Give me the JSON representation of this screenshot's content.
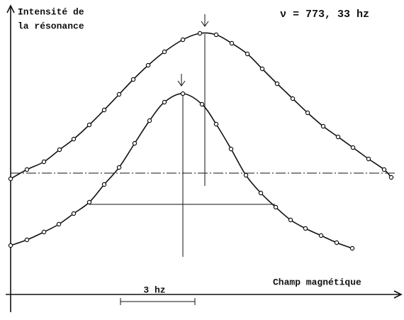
{
  "chart_data": {
    "type": "line",
    "ylabel": [
      "Intensité de",
      "la résonance"
    ],
    "xlabel": "Champ magnétique",
    "annotation": "ν = 773, 33 hz",
    "scale_label": "3 hz",
    "xlim": [
      0,
      550
    ],
    "ylim": [
      0,
      405
    ],
    "series": [
      {
        "color": "#111111",
        "x": [
          0,
          23,
          47,
          69,
          89,
          111,
          132,
          153,
          173,
          194,
          217,
          243,
          267,
          290,
          312,
          334,
          355,
          376,
          398,
          419,
          441,
          462,
          483,
          505,
          527,
          537
        ],
        "values": [
          163,
          176,
          187,
          204,
          219,
          239,
          260,
          282,
          303,
          323,
          342,
          359,
          368,
          366,
          354,
          339,
          318,
          297,
          276,
          256,
          237,
          222,
          207,
          191,
          176,
          165
        ]
      },
      {
        "color": "#111111",
        "x": [
          0,
          23,
          47,
          68,
          89,
          111,
          132,
          153,
          175,
          196,
          217,
          243,
          270,
          290,
          311,
          332,
          353,
          374,
          395,
          416,
          438,
          460,
          482
        ],
        "values": [
          69,
          77,
          88,
          99,
          114,
          130,
          155,
          179,
          213,
          245,
          271,
          283,
          268,
          240,
          205,
          168,
          143,
          123,
          105,
          93,
          83,
          73,
          65
        ]
      }
    ]
  }
}
